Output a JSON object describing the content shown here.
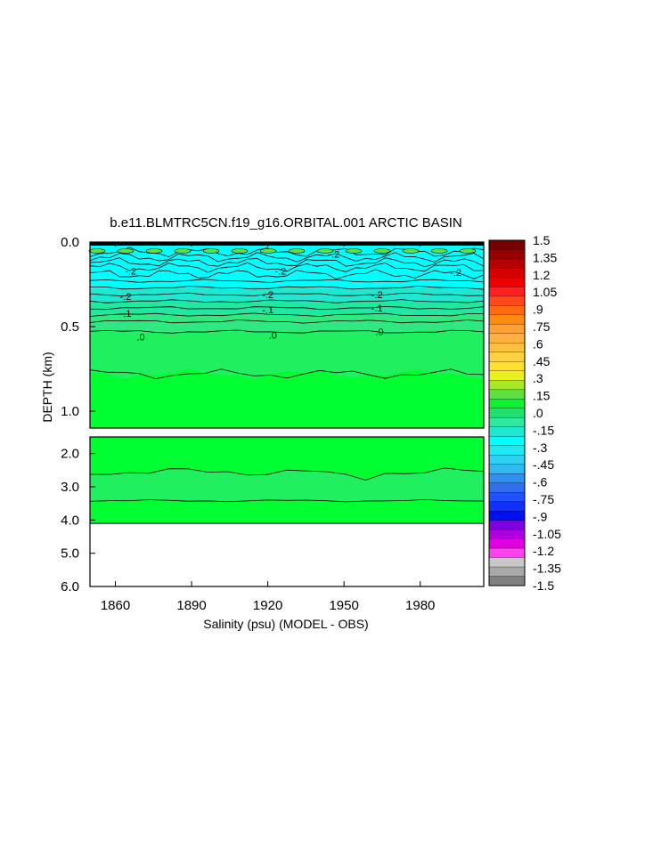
{
  "chart_data": {
    "type": "heatmap",
    "title": "b.e11.BLMTRC5CN.f19_g16.ORBITAL.001 ARCTIC BASIN",
    "xlabel": "Salinity (psu) (MODEL - OBS)",
    "ylabel": "DEPTH (km)",
    "xlim": [
      1850,
      2005
    ],
    "x_ticks": [
      1860,
      1890,
      1920,
      1950,
      1980
    ],
    "x_tick_labels": [
      "1860",
      "1890",
      "1920",
      "1950",
      "1980"
    ],
    "upper_panel": {
      "ylim": [
        0.0,
        1.1
      ],
      "y_ticks": [
        0.0,
        0.5,
        1.0
      ],
      "y_tick_labels": [
        "0.0",
        "0.5",
        "1.0"
      ]
    },
    "lower_panel": {
      "ylim": [
        1.5,
        6.0
      ],
      "y_ticks": [
        2.0,
        3.0,
        4.0,
        5.0,
        6.0
      ],
      "y_tick_labels": [
        "2.0",
        "3.0",
        "4.0",
        "5.0",
        "6.0"
      ],
      "data_bottom_depth": 4.1
    },
    "contour_labels": [
      {
        "text": "-.2",
        "x": 1866,
        "y": 0.17
      },
      {
        "text": "-.2",
        "x": 1925,
        "y": 0.17
      },
      {
        "text": "-.2",
        "x": 1994,
        "y": 0.18
      },
      {
        "text": "-.2",
        "x": 1946,
        "y": 0.07
      },
      {
        "text": "-.2",
        "x": 1864,
        "y": 0.32
      },
      {
        "text": "-.2",
        "x": 1920,
        "y": 0.31
      },
      {
        "text": "-.2",
        "x": 1963,
        "y": 0.31
      },
      {
        "text": "-.1",
        "x": 1864,
        "y": 0.42
      },
      {
        "text": "-.1",
        "x": 1920,
        "y": 0.4
      },
      {
        "text": "-.1",
        "x": 1963,
        "y": 0.39
      },
      {
        "text": ".0",
        "x": 1870,
        "y": 0.56
      },
      {
        "text": ".0",
        "x": 1922,
        "y": 0.55
      },
      {
        "text": ".0",
        "x": 1964,
        "y": 0.53
      }
    ],
    "colorbar": {
      "labels": [
        "1.5",
        "1.35",
        "1.2",
        "1.05",
        ".9",
        ".75",
        ".6",
        ".45",
        ".3",
        ".15",
        ".0",
        "-.15",
        "-.3",
        "-.45",
        "-.6",
        "-.75",
        "-.9",
        "-1.05",
        "-1.2",
        "-1.35",
        "-1.5"
      ],
      "colors": [
        "#7a0000",
        "#9a0000",
        "#b80000",
        "#d60000",
        "#f00000",
        "#ff2020",
        "#ff4a1a",
        "#ff6a10",
        "#ff8a10",
        "#ffa030",
        "#ffb040",
        "#ffc040",
        "#ffd040",
        "#ffe030",
        "#e8f020",
        "#a8e828",
        "#60e040",
        "#10f030",
        "#20e070",
        "#30e8a0",
        "#20e8d0",
        "#00ffff",
        "#20e8f0",
        "#30d0f0",
        "#30b8f0",
        "#3090f0",
        "#3070f0",
        "#2050ff",
        "#1030ff",
        "#0010f0",
        "#8000e0",
        "#b000e0",
        "#e000e0",
        "#ff40f0",
        "#c8c8c8",
        "#a8a8a8",
        "#808080"
      ]
    }
  }
}
